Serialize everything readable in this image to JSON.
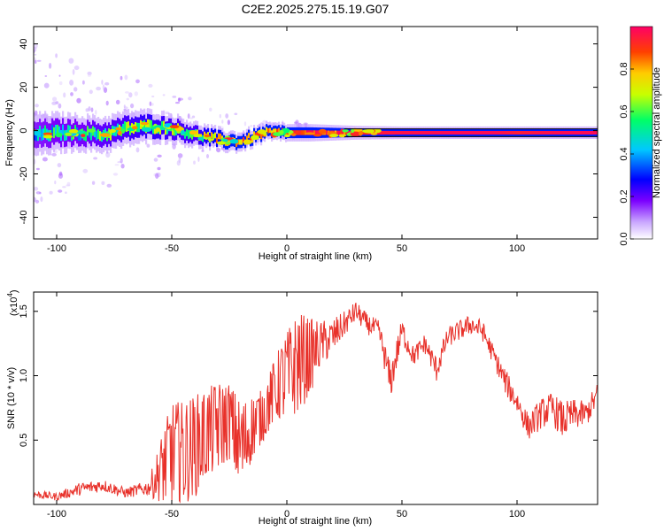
{
  "figure_title": "C2E2.2025.275.15.19.G07",
  "chart_data": [
    {
      "type": "heatmap",
      "title": "C2E2.2025.275.15.19.G07",
      "xlabel": "Height of straight line (km)",
      "ylabel": "Frequency (Hz)",
      "xlim": [
        -110,
        135
      ],
      "ylim": [
        -50,
        48
      ],
      "x_ticks": [
        -100,
        -50,
        0,
        50,
        100
      ],
      "y_ticks": [
        -40,
        -20,
        0,
        20,
        40
      ],
      "colorbar": {
        "label": "Normalized spectral amplitude",
        "range": [
          0,
          1
        ],
        "ticks": [
          0.0,
          0.2,
          0.4,
          0.6,
          0.8
        ],
        "tick_labels": [
          "0.0",
          "0.2",
          "0.4",
          "0.6",
          "0.8"
        ],
        "colormap": [
          "#ffffff",
          "#c9a6ff",
          "#7b00ff",
          "#0000ff",
          "#00c8ff",
          "#00ff66",
          "#c8ff00",
          "#ffcc00",
          "#ff4000",
          "#ff0066"
        ]
      },
      "ridge": {
        "x": [
          -110,
          -100,
          -90,
          -80,
          -70,
          -60,
          -50,
          -40,
          -35,
          -30,
          -25,
          -20,
          -15,
          -10,
          -5,
          0,
          10,
          20,
          30,
          50,
          70,
          90,
          100,
          110,
          120,
          135
        ],
        "frequency": [
          -2,
          -1,
          -1,
          -2,
          1,
          2,
          1,
          -2,
          -3,
          -4,
          -5,
          -5,
          -3,
          -1,
          -1,
          -1,
          -1,
          -1,
          -1,
          -1,
          -1,
          -1,
          -1,
          -1,
          -1,
          -1
        ],
        "amplitude": [
          0.45,
          0.5,
          0.5,
          0.55,
          0.6,
          0.65,
          0.6,
          0.6,
          0.7,
          0.75,
          0.8,
          0.8,
          0.85,
          0.8,
          0.85,
          0.85,
          0.9,
          0.9,
          0.95,
          0.97,
          0.98,
          0.98,
          0.95,
          0.97,
          0.98,
          0.98
        ]
      },
      "spread": {
        "x": [
          -110,
          -90,
          -70,
          -50,
          -30,
          -10,
          10,
          30,
          50,
          135
        ],
        "halfwidth": [
          6,
          5,
          5,
          4,
          3,
          2.5,
          2.5,
          2,
          1.8,
          1.8
        ]
      }
    },
    {
      "type": "line",
      "xlabel": "Height of straight line (km)",
      "ylabel": "SNR (10 * v/v)",
      "multiplier": "(x10",
      "multiplier_exp": "4",
      "multiplier_close": ")",
      "xlim": [
        -110,
        135
      ],
      "ylim": [
        0,
        16500
      ],
      "x_ticks": [
        -100,
        -50,
        0,
        50,
        100
      ],
      "y_ticks": [
        5000,
        10000,
        15000
      ],
      "y_tick_labels": [
        "0.5",
        "1.0",
        "1.5"
      ],
      "color": "#e8312a",
      "series": [
        {
          "x": [
            -110,
            -100,
            -90,
            -80,
            -70,
            -60,
            -55,
            -50,
            -45,
            -40,
            -35,
            -30,
            -25,
            -20,
            -15,
            -10,
            -5,
            0,
            5,
            10,
            15,
            20,
            25,
            30,
            35,
            40,
            45,
            50,
            55,
            60,
            65,
            70,
            75,
            80,
            85,
            90,
            95,
            100,
            105,
            110,
            115,
            120,
            125,
            130,
            135
          ],
          "values": [
            800,
            600,
            1200,
            1500,
            900,
            1300,
            2500,
            4000,
            4000,
            4500,
            5500,
            6000,
            6500,
            4500,
            6000,
            7000,
            9000,
            10000,
            11000,
            11500,
            12500,
            13000,
            14000,
            15000,
            14000,
            13500,
            9500,
            13500,
            11500,
            12500,
            10500,
            13000,
            13500,
            14000,
            13500,
            11500,
            9500,
            8000,
            6000,
            7000,
            7500,
            6500,
            7000,
            7000,
            8500
          ],
          "noise_amplitude": [
            300,
            300,
            500,
            500,
            400,
            600,
            2500,
            4000,
            4000,
            4000,
            3500,
            3500,
            3000,
            3500,
            2500,
            2000,
            2500,
            3500,
            4000,
            3000,
            1800,
            1500,
            1000,
            800,
            800,
            800,
            1500,
            1000,
            800,
            800,
            1000,
            800,
            800,
            800,
            800,
            800,
            1000,
            1000,
            1000,
            1200,
            1200,
            1500,
            1200,
            1000,
            1000
          ]
        }
      ]
    }
  ]
}
